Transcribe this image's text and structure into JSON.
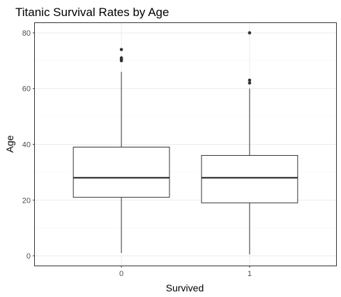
{
  "chart_data": {
    "type": "boxplot",
    "title": "Titanic Survival Rates by Age",
    "xlabel": "Survived",
    "ylabel": "Age",
    "ylim": [
      -3.5,
      83.5
    ],
    "yticks": [
      0,
      20,
      40,
      60,
      80
    ],
    "categories": [
      "0",
      "1"
    ],
    "boxes": [
      {
        "category": "0",
        "whisker_low": 1,
        "q1": 21,
        "median": 28,
        "q3": 39,
        "whisker_high": 66,
        "outliers": [
          70,
          70.5,
          71,
          74
        ]
      },
      {
        "category": "1",
        "whisker_low": 0.5,
        "q1": 19,
        "median": 28,
        "q3": 36,
        "whisker_high": 60,
        "outliers": [
          62,
          63,
          80
        ]
      }
    ],
    "grid": true,
    "legend": "none",
    "colors": {
      "box_fill": "#ffffff",
      "box_stroke": "#333333",
      "median": "#1a1a1a",
      "outlier": "#333333",
      "grid_major": "#ebebeb",
      "grid_minor": "#f5f5f5",
      "panel_border": "#333333"
    }
  }
}
